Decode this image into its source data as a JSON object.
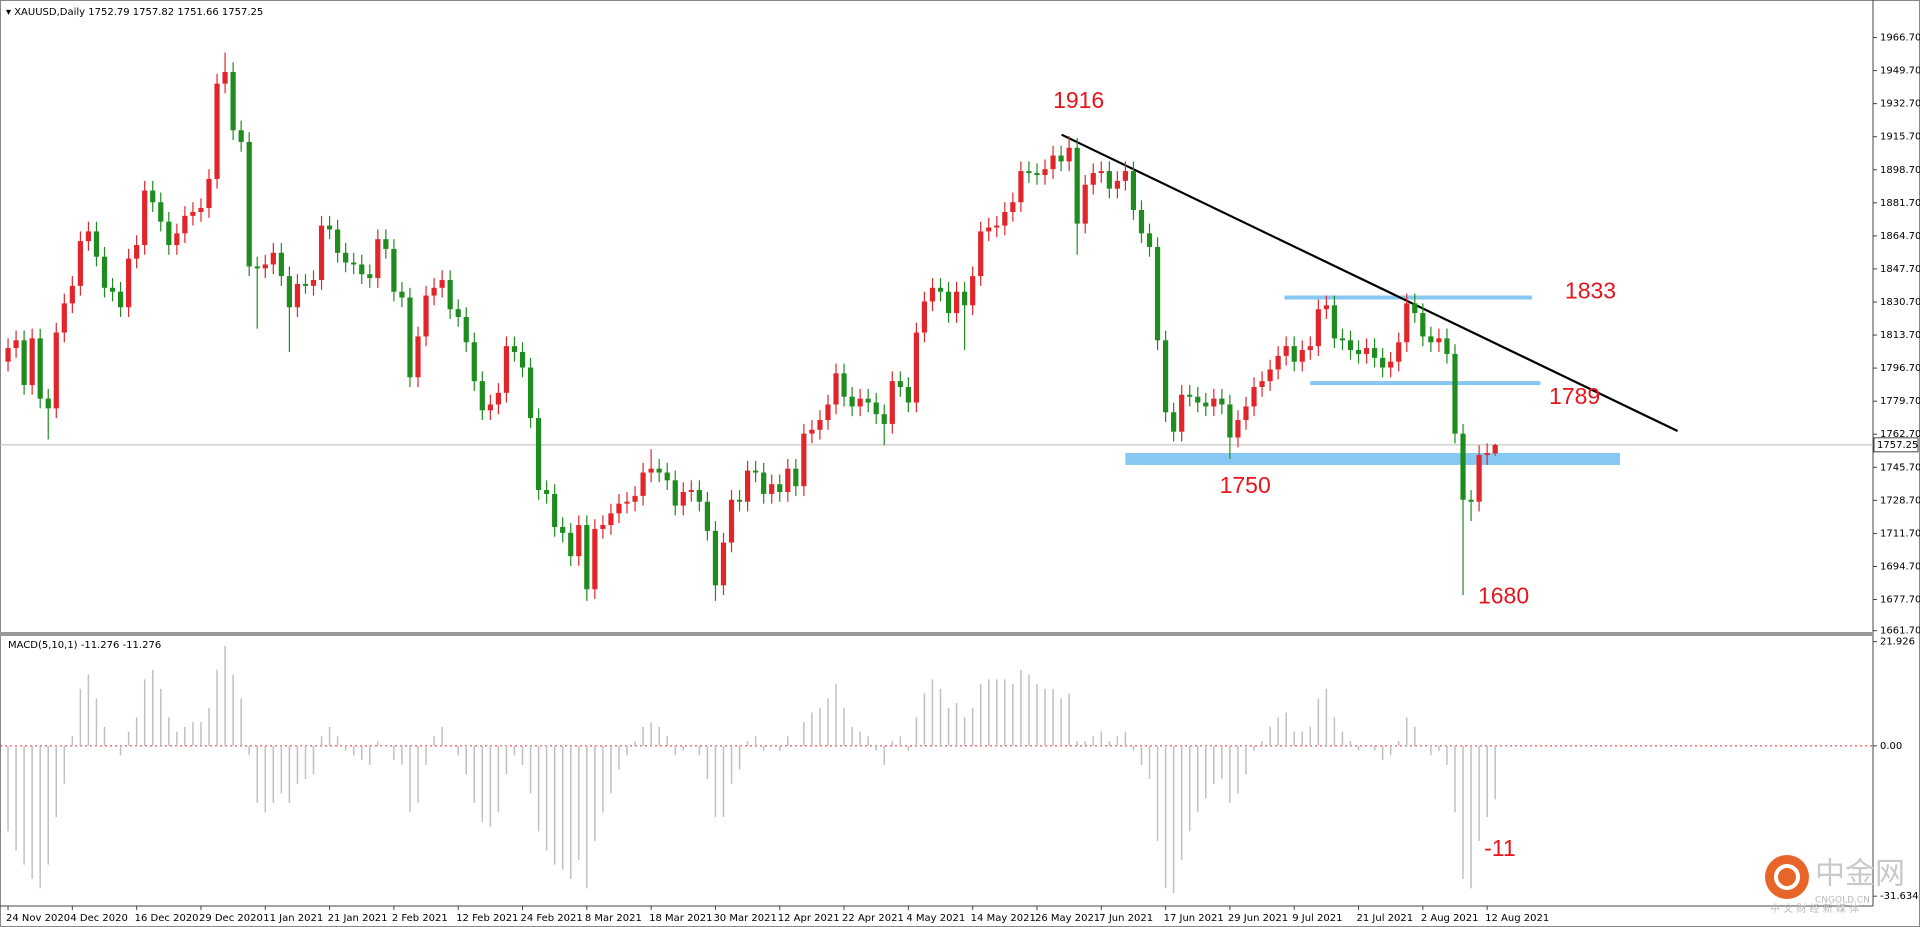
{
  "chart_data": [
    {
      "type": "candlestick",
      "title": "XAUUSD,Daily",
      "candles": {
        "open": [
          1800,
          1807,
          1811,
          1788,
          1812,
          1781,
          1776,
          1815,
          1830,
          1839,
          1862,
          1867,
          1854,
          1838,
          1836,
          1828,
          1853,
          1860,
          1888,
          1882,
          1872,
          1860,
          1866,
          1875,
          1877,
          1879,
          1894,
          1943,
          1949,
          1919,
          1913,
          1849,
          1848,
          1850,
          1856,
          1844,
          1828,
          1840,
          1839,
          1842,
          1870,
          1868,
          1856,
          1851,
          1850,
          1845,
          1843,
          1863,
          1858,
          1836,
          1833,
          1792,
          1813,
          1834,
          1838,
          1842,
          1827,
          1823,
          1810,
          1790,
          1775,
          1778,
          1784,
          1808,
          1805,
          1797,
          1771,
          1734,
          1732,
          1715,
          1712,
          1700,
          1716,
          1683,
          1714,
          1716,
          1722,
          1727,
          1728,
          1731,
          1743,
          1745,
          1743,
          1739,
          1726,
          1733,
          1734,
          1728,
          1713,
          1685,
          1707,
          1729,
          1728,
          1744,
          1743,
          1732,
          1737,
          1733,
          1745,
          1736,
          1763,
          1765,
          1770,
          1778,
          1794,
          1782,
          1777,
          1781,
          1779,
          1773,
          1768,
          1790,
          1787,
          1779,
          1815,
          1831,
          1838,
          1836,
          1825,
          1836,
          1829,
          1844,
          1867,
          1869,
          1870,
          1877,
          1882,
          1898,
          1897,
          1896,
          1899,
          1906,
          1903,
          1910,
          1871,
          1891,
          1897,
          1898,
          1889,
          1893,
          1898,
          1878,
          1866,
          1859,
          1811,
          1774,
          1764,
          1783,
          1782,
          1779,
          1777,
          1781,
          1778,
          1761,
          1770,
          1777,
          1787,
          1790,
          1796,
          1803,
          1808,
          1800,
          1806,
          1808,
          1827,
          1829,
          1812,
          1811,
          1806,
          1804,
          1807,
          1802,
          1797,
          1800,
          1810,
          1830,
          1825,
          1813,
          1810,
          1812,
          1804,
          1763,
          1729,
          1728,
          1752,
          1752.79
        ],
        "high": [
          1812,
          1816,
          1816,
          1817,
          1817,
          1786,
          1820,
          1835,
          1844,
          1867,
          1872,
          1872,
          1859,
          1843,
          1841,
          1858,
          1865,
          1893,
          1893,
          1887,
          1877,
          1871,
          1880,
          1882,
          1884,
          1899,
          1948,
          1959,
          1954,
          1924,
          1918,
          1854,
          1855,
          1861,
          1861,
          1849,
          1845,
          1845,
          1847,
          1875,
          1875,
          1873,
          1861,
          1856,
          1855,
          1850,
          1868,
          1868,
          1863,
          1841,
          1838,
          1818,
          1839,
          1843,
          1847,
          1847,
          1832,
          1828,
          1815,
          1795,
          1783,
          1789,
          1813,
          1813,
          1810,
          1802,
          1776,
          1739,
          1737,
          1720,
          1717,
          1721,
          1721,
          1719,
          1721,
          1727,
          1732,
          1733,
          1736,
          1748,
          1755,
          1750,
          1748,
          1744,
          1738,
          1739,
          1739,
          1733,
          1718,
          1712,
          1734,
          1734,
          1749,
          1749,
          1748,
          1742,
          1742,
          1750,
          1750,
          1768,
          1770,
          1775,
          1783,
          1799,
          1799,
          1787,
          1786,
          1786,
          1784,
          1778,
          1795,
          1795,
          1792,
          1820,
          1836,
          1843,
          1843,
          1841,
          1841,
          1841,
          1849,
          1872,
          1874,
          1875,
          1882,
          1887,
          1903,
          1903,
          1902,
          1904,
          1911,
          1911,
          1916,
          1915,
          1896,
          1902,
          1903,
          1903,
          1898,
          1903,
          1903,
          1883,
          1871,
          1864,
          1816,
          1779,
          1788,
          1788,
          1787,
          1784,
          1786,
          1786,
          1783,
          1775,
          1782,
          1792,
          1795,
          1801,
          1808,
          1813,
          1813,
          1811,
          1813,
          1832,
          1834,
          1834,
          1817,
          1816,
          1811,
          1812,
          1812,
          1807,
          1805,
          1815,
          1835,
          1835,
          1830,
          1818,
          1817,
          1817,
          1809,
          1768,
          1734,
          1757,
          1758,
          1757.82
        ],
        "low": [
          1795,
          1802,
          1783,
          1783,
          1776,
          1760,
          1771,
          1810,
          1825,
          1834,
          1857,
          1849,
          1833,
          1831,
          1823,
          1823,
          1848,
          1855,
          1877,
          1867,
          1855,
          1855,
          1861,
          1870,
          1872,
          1874,
          1889,
          1938,
          1914,
          1908,
          1844,
          1817,
          1843,
          1845,
          1839,
          1805,
          1823,
          1835,
          1834,
          1837,
          1863,
          1851,
          1846,
          1845,
          1840,
          1838,
          1838,
          1853,
          1831,
          1828,
          1787,
          1787,
          1808,
          1829,
          1833,
          1822,
          1818,
          1805,
          1785,
          1770,
          1770,
          1773,
          1779,
          1800,
          1792,
          1766,
          1729,
          1727,
          1710,
          1707,
          1695,
          1695,
          1677,
          1678,
          1709,
          1711,
          1717,
          1722,
          1723,
          1726,
          1738,
          1738,
          1734,
          1721,
          1721,
          1728,
          1723,
          1708,
          1677,
          1680,
          1702,
          1723,
          1723,
          1738,
          1727,
          1727,
          1728,
          1728,
          1731,
          1731,
          1758,
          1760,
          1765,
          1773,
          1777,
          1772,
          1772,
          1774,
          1768,
          1757,
          1763,
          1782,
          1774,
          1774,
          1810,
          1826,
          1831,
          1820,
          1820,
          1806,
          1824,
          1839,
          1862,
          1864,
          1865,
          1872,
          1877,
          1892,
          1891,
          1891,
          1894,
          1898,
          1898,
          1855,
          1866,
          1886,
          1892,
          1884,
          1884,
          1888,
          1873,
          1861,
          1854,
          1806,
          1769,
          1759,
          1759,
          1777,
          1774,
          1772,
          1772,
          1773,
          1750,
          1756,
          1765,
          1772,
          1782,
          1785,
          1791,
          1798,
          1795,
          1795,
          1801,
          1803,
          1822,
          1807,
          1806,
          1801,
          1799,
          1799,
          1797,
          1792,
          1792,
          1795,
          1805,
          1820,
          1808,
          1805,
          1805,
          1799,
          1758,
          1680,
          1718,
          1723,
          1747,
          1751.66
        ],
        "close": [
          1807,
          1811,
          1788,
          1812,
          1781,
          1776,
          1815,
          1830,
          1839,
          1862,
          1867,
          1854,
          1838,
          1836,
          1828,
          1853,
          1860,
          1888,
          1882,
          1872,
          1860,
          1866,
          1875,
          1877,
          1879,
          1894,
          1943,
          1949,
          1919,
          1913,
          1849,
          1848,
          1850,
          1856,
          1844,
          1828,
          1840,
          1839,
          1842,
          1870,
          1868,
          1856,
          1851,
          1850,
          1845,
          1843,
          1863,
          1858,
          1836,
          1833,
          1792,
          1813,
          1834,
          1838,
          1842,
          1827,
          1823,
          1810,
          1790,
          1775,
          1778,
          1784,
          1808,
          1805,
          1797,
          1771,
          1734,
          1732,
          1715,
          1712,
          1700,
          1716,
          1683,
          1714,
          1716,
          1722,
          1727,
          1728,
          1731,
          1743,
          1745,
          1743,
          1739,
          1726,
          1733,
          1734,
          1728,
          1713,
          1685,
          1707,
          1729,
          1728,
          1744,
          1743,
          1732,
          1737,
          1733,
          1745,
          1736,
          1763,
          1765,
          1770,
          1778,
          1794,
          1782,
          1777,
          1781,
          1779,
          1773,
          1768,
          1790,
          1787,
          1779,
          1815,
          1831,
          1838,
          1836,
          1825,
          1836,
          1829,
          1844,
          1867,
          1869,
          1870,
          1877,
          1882,
          1898,
          1897,
          1896,
          1899,
          1906,
          1903,
          1910,
          1871,
          1891,
          1897,
          1898,
          1889,
          1893,
          1898,
          1878,
          1866,
          1859,
          1811,
          1774,
          1764,
          1783,
          1782,
          1779,
          1777,
          1781,
          1778,
          1761,
          1770,
          1777,
          1787,
          1790,
          1796,
          1803,
          1808,
          1800,
          1806,
          1808,
          1827,
          1829,
          1812,
          1811,
          1806,
          1804,
          1807,
          1802,
          1797,
          1800,
          1810,
          1830,
          1825,
          1813,
          1810,
          1812,
          1804,
          1763,
          1729,
          1728,
          1752,
          1753,
          1757.25
        ]
      },
      "up_color": "#e0262b",
      "down_color": "#1e8c1e",
      "xlim": [
        -1,
        232
      ],
      "xticks": [
        {
          "value": 0,
          "label": "24 Nov 2020"
        },
        {
          "value": 8,
          "label": "4 Dec 2020"
        },
        {
          "value": 16,
          "label": "16 Dec 2020"
        },
        {
          "value": 24,
          "label": "29 Dec 2020"
        },
        {
          "value": 32,
          "label": "11 Jan 2021"
        },
        {
          "value": 40,
          "label": "21 Jan 2021"
        },
        {
          "value": 48,
          "label": "2 Feb 2021"
        },
        {
          "value": 56,
          "label": "12 Feb 2021"
        },
        {
          "value": 64,
          "label": "24 Feb 2021"
        },
        {
          "value": 72,
          "label": "8 Mar 2021"
        },
        {
          "value": 80,
          "label": "18 Mar 2021"
        },
        {
          "value": 88,
          "label": "30 Mar 2021"
        },
        {
          "value": 96,
          "label": "12 Apr 2021"
        },
        {
          "value": 104,
          "label": "22 Apr 2021"
        },
        {
          "value": 112,
          "label": "4 May 2021"
        },
        {
          "value": 120,
          "label": "14 May 2021"
        },
        {
          "value": 128,
          "label": "26 May 2021"
        },
        {
          "value": 136,
          "label": "7 Jun 2021"
        },
        {
          "value": 144,
          "label": "17 Jun 2021"
        },
        {
          "value": 152,
          "label": "29 Jun 2021"
        },
        {
          "value": 160,
          "label": "9 Jul 2021"
        },
        {
          "value": 168,
          "label": "21 Jul 2021"
        },
        {
          "value": 176,
          "label": "2 Aug 2021"
        },
        {
          "value": 184,
          "label": "12 Aug 2021"
        }
      ],
      "ylim": [
        1661,
        1986
      ],
      "yticks": [
        {
          "value": 1966.7,
          "label": "1966.70"
        },
        {
          "value": 1949.7,
          "label": "1949.70"
        },
        {
          "value": 1932.7,
          "label": "1932.70"
        },
        {
          "value": 1915.7,
          "label": "1915.70"
        },
        {
          "value": 1898.7,
          "label": "1898.70"
        },
        {
          "value": 1881.7,
          "label": "1881.70"
        },
        {
          "value": 1864.7,
          "label": "1864.70"
        },
        {
          "value": 1847.7,
          "label": "1847.70"
        },
        {
          "value": 1830.7,
          "label": "1830.70"
        },
        {
          "value": 1813.7,
          "label": "1813.70"
        },
        {
          "value": 1796.7,
          "label": "1796.70"
        },
        {
          "value": 1779.7,
          "label": "1779.70"
        },
        {
          "value": 1762.7,
          "label": "1762.70"
        },
        {
          "value": 1745.7,
          "label": "1745.70"
        },
        {
          "value": 1728.7,
          "label": "1728.70"
        },
        {
          "value": 1711.7,
          "label": "1711.70"
        },
        {
          "value": 1694.7,
          "label": "1694.70"
        },
        {
          "value": 1677.7,
          "label": "1677.70"
        },
        {
          "value": 1661.7,
          "label": "1661.70"
        }
      ],
      "annotations": [
        1916,
        1833,
        1789,
        1750,
        1680
      ],
      "annotation_color": "#e8141b",
      "level_color": "#86c8f2"
    },
    {
      "type": "histogram",
      "title": "MACD(5,10,1)",
      "values": [
        -18,
        -22,
        -25,
        -28,
        -30,
        -25,
        -15,
        -8,
        2,
        12,
        15,
        10,
        4,
        0,
        -2,
        3,
        6,
        14,
        16,
        12,
        6,
        3,
        4,
        5,
        5,
        8,
        16,
        21,
        15,
        10,
        -2,
        -12,
        -14,
        -12,
        -10,
        -12,
        -8,
        -7,
        -6,
        2,
        4,
        2,
        -1,
        -2,
        -3,
        -4,
        1,
        0,
        -3,
        -4,
        -14,
        -12,
        -4,
        2,
        4,
        0,
        -2,
        -6,
        -12,
        -16,
        -17,
        -14,
        -6,
        -2,
        -4,
        -10,
        -18,
        -22,
        -25,
        -26,
        -28,
        -24,
        -30,
        -20,
        -14,
        -10,
        -5,
        -2,
        1,
        4,
        5,
        4,
        2,
        -2,
        -1,
        0,
        -2,
        -7,
        -15,
        -15,
        -8,
        -5,
        1,
        2,
        -1,
        0,
        -1,
        2,
        0,
        5,
        7,
        8,
        10,
        13,
        8,
        4,
        3,
        2,
        -1,
        -4,
        1,
        2,
        -1,
        6,
        11,
        14,
        12,
        8,
        9,
        6,
        8,
        13,
        14,
        14,
        14,
        13,
        16,
        15,
        13,
        12,
        12,
        10,
        11,
        1,
        1,
        2,
        3,
        1,
        2,
        3,
        -1,
        -4,
        -7,
        -20,
        -30,
        -31,
        -24,
        -18,
        -14,
        -11,
        -8,
        -7,
        -12,
        -10,
        -6,
        -1,
        1,
        4,
        6,
        7,
        3,
        3,
        4,
        10,
        12,
        6,
        3,
        1,
        -1,
        0,
        -1,
        -3,
        -2,
        1,
        6,
        4,
        0,
        -2,
        -1,
        -4,
        -14,
        -28,
        -30,
        -20,
        -15,
        -11.276
      ],
      "color": "#c0c0c0",
      "ylim": [
        -33.7,
        22.9
      ],
      "yticks": [
        21.926,
        {
          "value": 0,
          "label": "0.00"
        },
        -31.634
      ],
      "annotations": [
        -11
      ]
    }
  ],
  "watermark": {
    "name": "中金网",
    "site": "CNGOLD.CN",
    "slogan": "中 文 财 经 新 媒 体"
  }
}
